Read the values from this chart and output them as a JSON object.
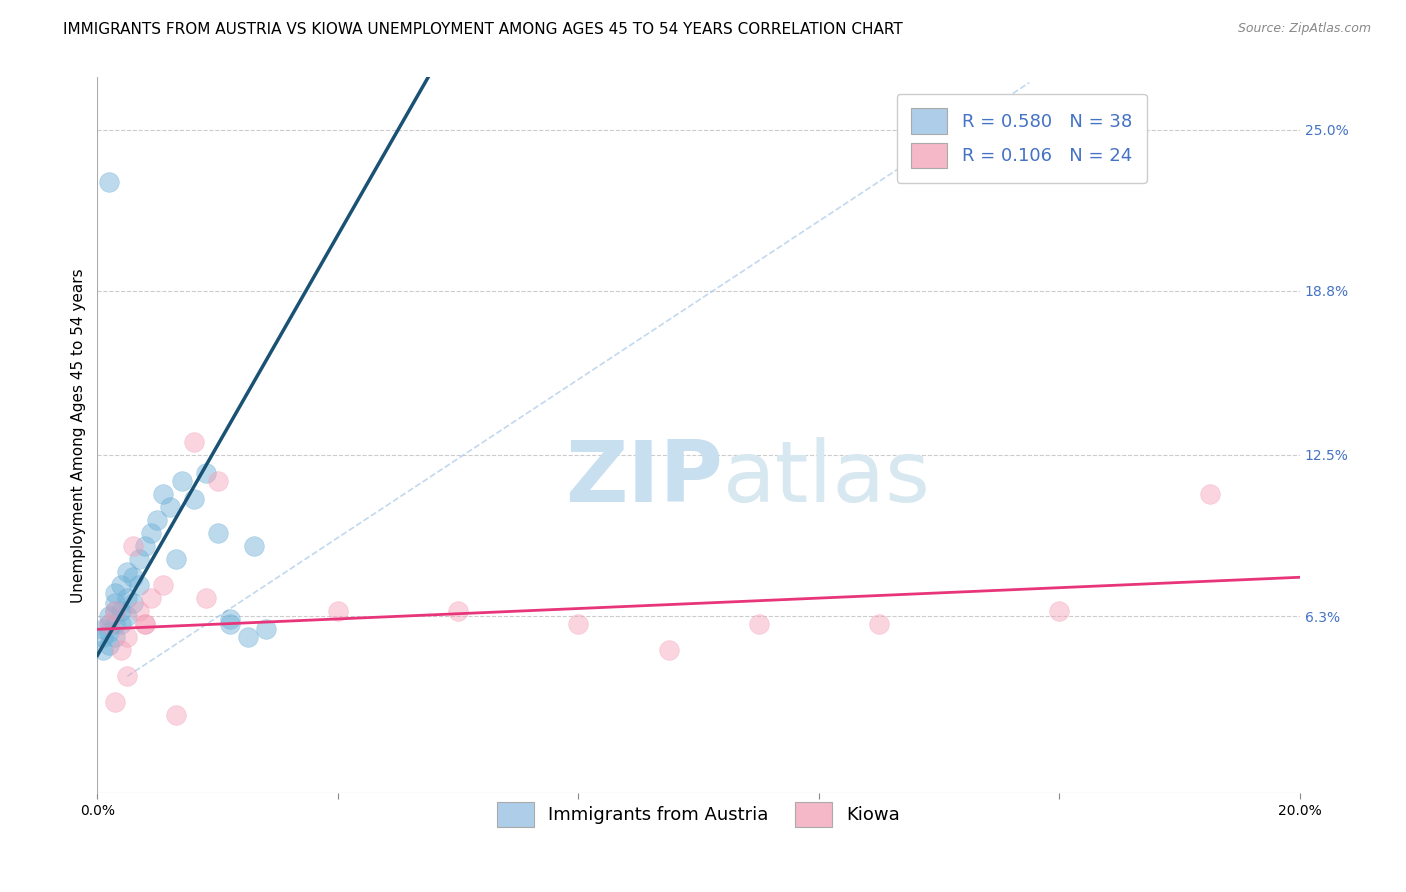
{
  "title": "IMMIGRANTS FROM AUSTRIA VS KIOWA UNEMPLOYMENT AMONG AGES 45 TO 54 YEARS CORRELATION CHART",
  "source": "Source: ZipAtlas.com",
  "ylabel": "Unemployment Among Ages 45 to 54 years",
  "xlim": [
    0.0,
    0.2
  ],
  "ylim": [
    -0.005,
    0.27
  ],
  "xticks": [
    0.0,
    0.04,
    0.08,
    0.12,
    0.16,
    0.2
  ],
  "xticklabels": [
    "0.0%",
    "",
    "",
    "",
    "",
    "20.0%"
  ],
  "yticks_right": [
    0.0,
    0.063,
    0.125,
    0.188,
    0.25
  ],
  "ytick_labels_right": [
    "",
    "6.3%",
    "12.5%",
    "18.8%",
    "25.0%"
  ],
  "grid_color": "#cccccc",
  "background_color": "#ffffff",
  "watermark_zip": "ZIP",
  "watermark_atlas": "atlas",
  "watermark_color": "#ddeef8",
  "legend_r1": "R = 0.580",
  "legend_n1": "N = 38",
  "legend_r2": "R = 0.106",
  "legend_n2": "N = 24",
  "legend_color1": "#aecde8",
  "legend_color2": "#f4b8c8",
  "blue_scatter_x": [
    0.001,
    0.001,
    0.001,
    0.002,
    0.002,
    0.002,
    0.002,
    0.003,
    0.003,
    0.003,
    0.003,
    0.003,
    0.004,
    0.004,
    0.004,
    0.005,
    0.005,
    0.005,
    0.006,
    0.006,
    0.007,
    0.007,
    0.008,
    0.009,
    0.01,
    0.011,
    0.012,
    0.014,
    0.016,
    0.018,
    0.02,
    0.022,
    0.025,
    0.028,
    0.002,
    0.013,
    0.022,
    0.026
  ],
  "blue_scatter_y": [
    0.05,
    0.055,
    0.058,
    0.052,
    0.057,
    0.06,
    0.063,
    0.055,
    0.06,
    0.065,
    0.068,
    0.072,
    0.06,
    0.065,
    0.075,
    0.063,
    0.07,
    0.08,
    0.068,
    0.078,
    0.075,
    0.085,
    0.09,
    0.095,
    0.1,
    0.11,
    0.105,
    0.115,
    0.108,
    0.118,
    0.095,
    0.06,
    0.055,
    0.058,
    0.23,
    0.085,
    0.062,
    0.09
  ],
  "pink_scatter_x": [
    0.002,
    0.003,
    0.004,
    0.005,
    0.006,
    0.007,
    0.008,
    0.009,
    0.011,
    0.013,
    0.016,
    0.02,
    0.06,
    0.08,
    0.095,
    0.11,
    0.13,
    0.16,
    0.185,
    0.003,
    0.04,
    0.005,
    0.008,
    0.018
  ],
  "pink_scatter_y": [
    0.06,
    0.065,
    0.05,
    0.055,
    0.09,
    0.065,
    0.06,
    0.07,
    0.075,
    0.025,
    0.13,
    0.115,
    0.065,
    0.06,
    0.05,
    0.06,
    0.06,
    0.065,
    0.11,
    0.03,
    0.065,
    0.04,
    0.06,
    0.07
  ],
  "blue_line_x": [
    0.0,
    0.055
  ],
  "blue_line_y": [
    0.048,
    0.27
  ],
  "pink_line_x": [
    0.0,
    0.2
  ],
  "pink_line_y": [
    0.058,
    0.078
  ],
  "ref_line_x": [
    0.005,
    0.155
  ],
  "ref_line_y": [
    0.04,
    0.268
  ],
  "title_fontsize": 11,
  "axis_label_fontsize": 11,
  "tick_fontsize": 10,
  "legend_fontsize": 13,
  "source_fontsize": 9,
  "scatter_size": 200,
  "scatter_alpha": 0.45,
  "blue_scatter_color": "#6baed6",
  "pink_scatter_color": "#f4a0b8",
  "blue_line_color": "#1a5276",
  "pink_line_color": "#e8357a",
  "ref_line_color": "#a8c8e8",
  "right_tick_color": "#4472c4"
}
